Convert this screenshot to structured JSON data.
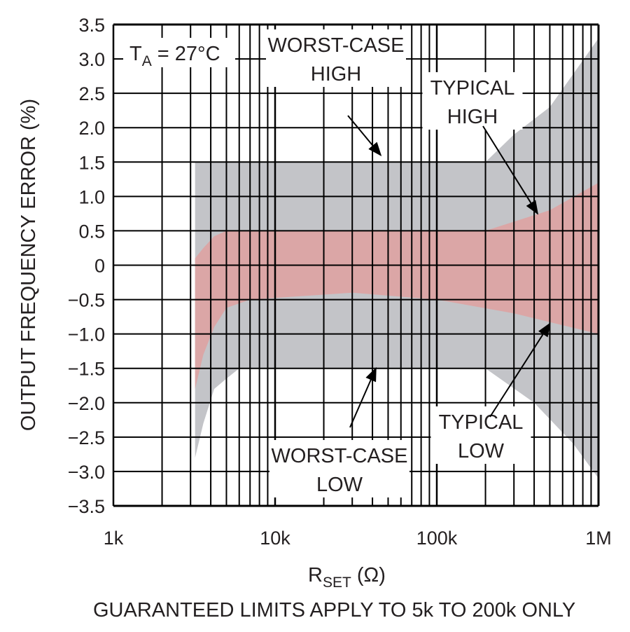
{
  "chart_data": {
    "type": "area",
    "title": "",
    "xlabel": {
      "main": "R",
      "sub": "SET",
      "unit": " (Ω)"
    },
    "ylabel": "OUTPUT FREQUENCY ERROR (%)",
    "footnote": "GUARANTEED LIMITS APPLY TO 5k TO 200k ONLY",
    "condition": {
      "main": "T",
      "sub": "A",
      "rest": " = 27°C"
    },
    "xscale": "log",
    "xlim": [
      1000,
      1000000
    ],
    "ylim": [
      -3.5,
      3.5
    ],
    "grid": true,
    "x_ticks": [
      {
        "value": 1000,
        "label": "1k"
      },
      {
        "value": 10000,
        "label": "10k"
      },
      {
        "value": 100000,
        "label": "100k"
      },
      {
        "value": 1000000,
        "label": "1M"
      }
    ],
    "y_ticks": [
      {
        "value": 3.5,
        "label": "3.5"
      },
      {
        "value": 3.0,
        "label": "3.0"
      },
      {
        "value": 2.5,
        "label": "2.5"
      },
      {
        "value": 2.0,
        "label": "2.0"
      },
      {
        "value": 1.5,
        "label": "1.5"
      },
      {
        "value": 1.0,
        "label": "1.0"
      },
      {
        "value": 0.5,
        "label": "0.5"
      },
      {
        "value": 0,
        "label": "0"
      },
      {
        "value": -0.5,
        "label": "−0.5"
      },
      {
        "value": -1.0,
        "label": "−1.0"
      },
      {
        "value": -1.5,
        "label": "−1.5"
      },
      {
        "value": -2.0,
        "label": "−2.0"
      },
      {
        "value": -2.5,
        "label": "−2.5"
      },
      {
        "value": -3.0,
        "label": "−3.0"
      },
      {
        "value": -3.5,
        "label": "−3.5"
      }
    ],
    "series": [
      {
        "name": "Worst-case",
        "color": "#c3c4c8",
        "upper": [
          [
            3200,
            1.5
          ],
          [
            200000,
            1.5
          ],
          [
            300000,
            1.9
          ],
          [
            500000,
            2.3
          ],
          [
            1000000,
            3.3
          ]
        ],
        "lower": [
          [
            3200,
            -2.8
          ],
          [
            3600,
            -2.3
          ],
          [
            4200,
            -1.8
          ],
          [
            5000,
            -1.65
          ],
          [
            6000,
            -1.5
          ],
          [
            200000,
            -1.5
          ],
          [
            400000,
            -2.0
          ],
          [
            700000,
            -2.6
          ],
          [
            1000000,
            -3.1
          ]
        ]
      },
      {
        "name": "Typical",
        "color": "#dba6a6",
        "upper": [
          [
            3200,
            0.1
          ],
          [
            3600,
            0.25
          ],
          [
            4200,
            0.42
          ],
          [
            5000,
            0.5
          ],
          [
            200000,
            0.5
          ],
          [
            500000,
            0.8
          ],
          [
            1000000,
            1.2
          ]
        ],
        "lower": [
          [
            3200,
            -1.8
          ],
          [
            3600,
            -1.3
          ],
          [
            4200,
            -0.9
          ],
          [
            5000,
            -0.62
          ],
          [
            7000,
            -0.5
          ],
          [
            30000,
            -0.4
          ],
          [
            100000,
            -0.5
          ],
          [
            300000,
            -0.7
          ],
          [
            1000000,
            -1.0
          ]
        ]
      }
    ],
    "annotations": [
      {
        "lines": [
          "WORST-CASE",
          "HIGH"
        ],
        "target": [
          45000,
          1.6
        ]
      },
      {
        "lines": [
          "TYPICAL",
          "HIGH"
        ],
        "target": [
          420000,
          0.75
        ]
      },
      {
        "lines": [
          "WORST-CASE",
          "LOW"
        ],
        "target": [
          42000,
          -1.5
        ]
      },
      {
        "lines": [
          "TYPICAL",
          "LOW"
        ],
        "target": [
          500000,
          -0.85
        ]
      }
    ]
  }
}
